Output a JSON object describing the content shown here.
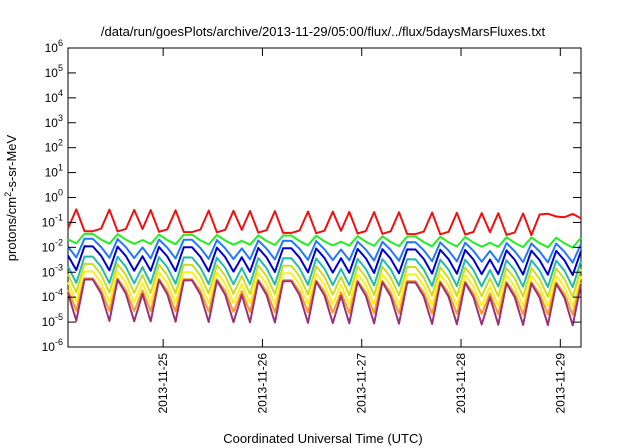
{
  "chart_data": {
    "type": "line",
    "title": "/data/run/goesPlots/archive/2013-11-29/05:00/flux/../flux/5daysMarsFluxes.txt",
    "xlabel": "Coordinated Universal Time (UTC)",
    "ylabel": {
      "base": "protons/cm",
      "sup": "2",
      "rest": "-s-sr-MeV"
    },
    "yscale": "log",
    "ylim": [
      1e-06,
      1000000.0
    ],
    "yticks": [
      {
        "value": 1e-06,
        "exp": "-6"
      },
      {
        "value": 1e-05,
        "exp": "-5"
      },
      {
        "value": 0.0001,
        "exp": "-4"
      },
      {
        "value": 0.001,
        "exp": "-3"
      },
      {
        "value": 0.01,
        "exp": "-2"
      },
      {
        "value": 0.1,
        "exp": "-1"
      },
      {
        "value": 1,
        "exp": "0"
      },
      {
        "value": 10,
        "exp": "1"
      },
      {
        "value": 100,
        "exp": "2"
      },
      {
        "value": 1000,
        "exp": "3"
      },
      {
        "value": 10000,
        "exp": "4"
      },
      {
        "value": 100000,
        "exp": "5"
      },
      {
        "value": 1000000,
        "exp": "6"
      }
    ],
    "ytick_base": "10",
    "xlim": [
      "2013-11-24T01:00",
      "2013-11-29T05:00"
    ],
    "xticks": [
      "2013-11-25",
      "2013-11-26",
      "2013-11-27",
      "2013-11-28",
      "2013-11-29"
    ],
    "grid": false,
    "legend": "none",
    "sampling": {
      "start": "2013-11-24T01:00",
      "step_hours": 2,
      "points": 63
    },
    "series": [
      {
        "color": "#ee1111",
        "base": 0.13,
        "end": 0.085,
        "amplitude": 0.35,
        "events": [
          {
            "time": "2013-11-28T18:00",
            "peak": 0.22,
            "decay_to": 0.12
          }
        ]
      },
      {
        "color": "#22ee22",
        "base": 0.022,
        "end": 0.015,
        "amplitude": 1.6
      },
      {
        "color": "#2277ff",
        "base": 0.009,
        "end": 0.0055,
        "amplitude": 2.5
      },
      {
        "color": "#0000cc",
        "base": 0.0035,
        "end": 0.0022,
        "amplitude": 3.2
      },
      {
        "color": "#22bbaa",
        "base": 0.0012,
        "end": 0.0008,
        "amplitude": 3.6
      },
      {
        "color": "#ccdd22",
        "base": 0.00055,
        "end": 0.00035,
        "amplitude": 4.0
      },
      {
        "color": "#ffee22",
        "base": 0.00025,
        "end": 0.00016,
        "amplitude": 4.4
      },
      {
        "color": "#ff9922",
        "base": 0.00012,
        "end": 8e-05,
        "amplitude": 4.8
      },
      {
        "color": "#993377",
        "base": 7e-05,
        "end": 4.5e-05,
        "amplitude": 7.5
      }
    ]
  }
}
